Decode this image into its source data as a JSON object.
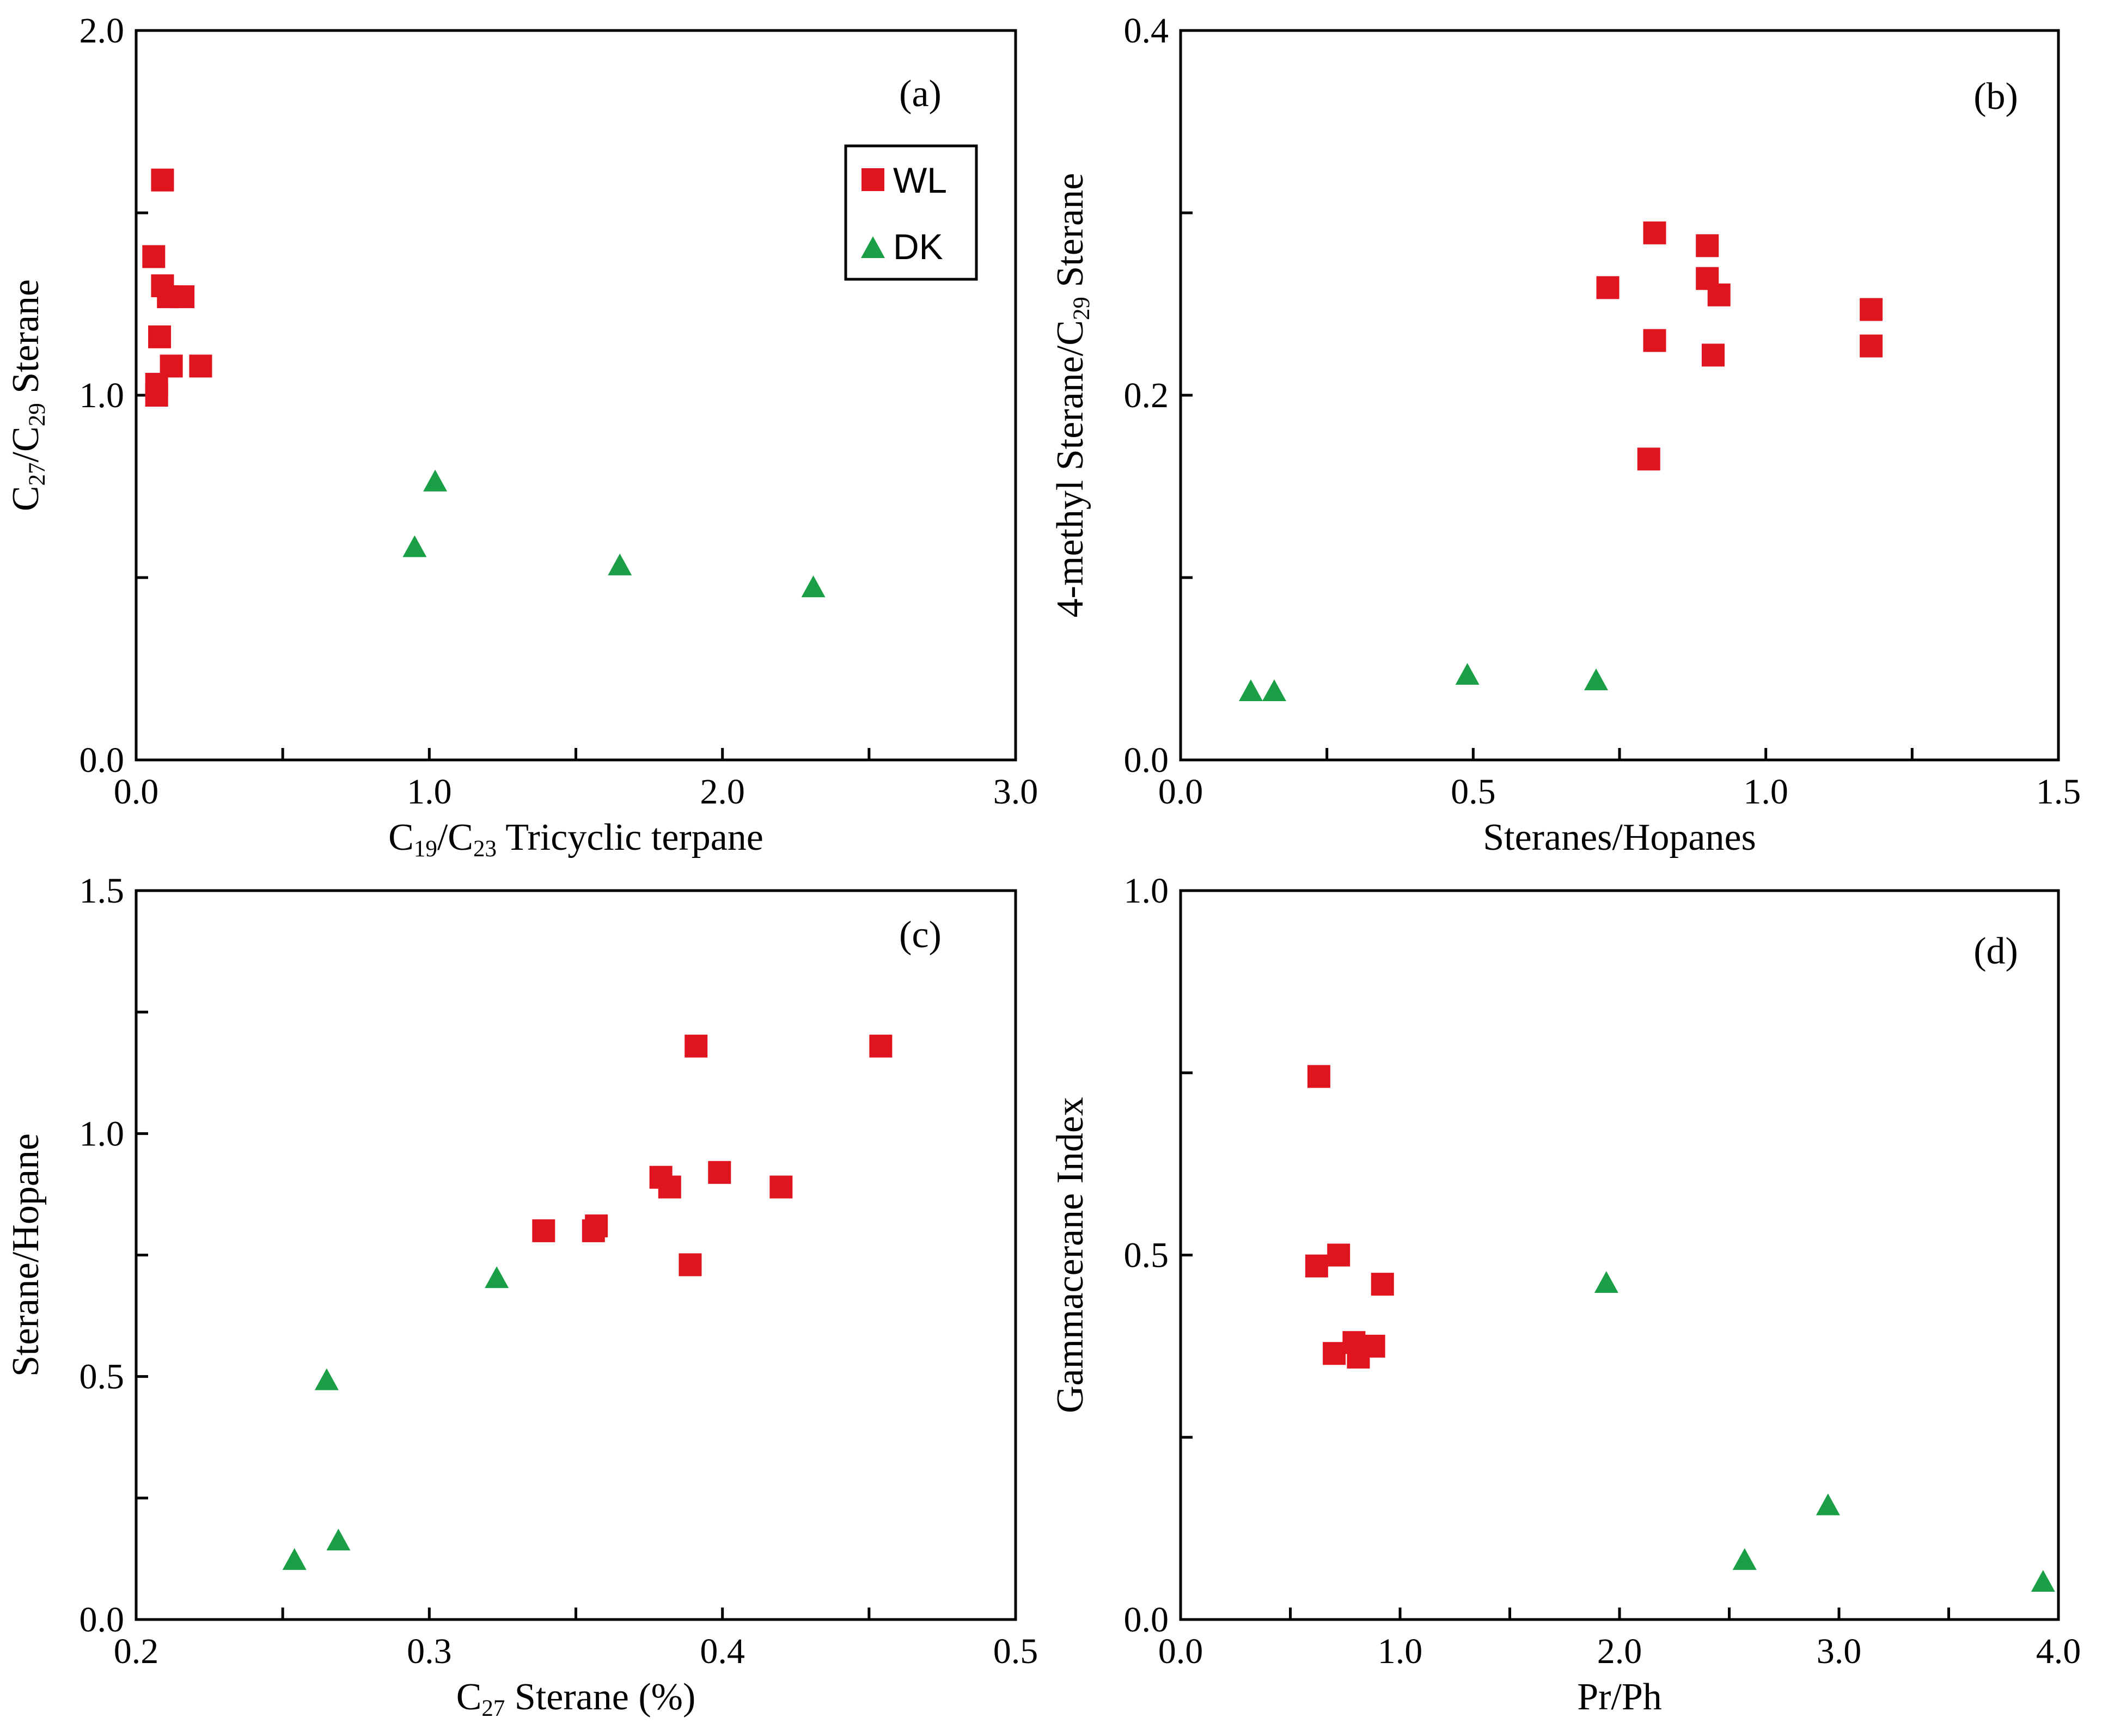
{
  "colors": {
    "WL": "#e0141e",
    "DK": "#1a9e46"
  },
  "legend": [
    {
      "name": "WL",
      "marker": "square"
    },
    {
      "name": "DK",
      "marker": "triangle"
    }
  ],
  "chart_data": [
    {
      "type": "scatter",
      "panel": "(a)",
      "xlabel": {
        "parts": [
          {
            "t": "C"
          },
          {
            "t": "19",
            "sub": true
          },
          {
            "t": "/C"
          },
          {
            "t": "23",
            "sub": true
          },
          {
            "t": " Tricyclic terpane"
          }
        ]
      },
      "ylabel": {
        "parts": [
          {
            "t": "C"
          },
          {
            "t": "27",
            "sub": true
          },
          {
            "t": "/C"
          },
          {
            "t": "29",
            "sub": true
          },
          {
            "t": " Sterane"
          }
        ]
      },
      "xlim": [
        0,
        3
      ],
      "ylim": [
        0,
        2
      ],
      "xticks": [
        0,
        0.5,
        1,
        1.5,
        2,
        2.5,
        3
      ],
      "xticklabels": [
        "0.0",
        "",
        "1.0",
        "",
        "2.0",
        "",
        "3.0"
      ],
      "yticks": [
        0,
        0.5,
        1,
        1.5,
        2
      ],
      "yticklabels": [
        "0.0",
        "",
        "1.0",
        "",
        "2.0"
      ],
      "legend_position": "top-right",
      "series": [
        {
          "name": "WL",
          "marker": "square",
          "points": [
            [
              0.09,
              1.59
            ],
            [
              0.06,
              1.38
            ],
            [
              0.09,
              1.3
            ],
            [
              0.11,
              1.27
            ],
            [
              0.16,
              1.27
            ],
            [
              0.08,
              1.16
            ],
            [
              0.12,
              1.08
            ],
            [
              0.22,
              1.08
            ],
            [
              0.07,
              1.03
            ],
            [
              0.07,
              1.0
            ]
          ]
        },
        {
          "name": "DK",
          "marker": "triangle",
          "points": [
            [
              1.02,
              0.76
            ],
            [
              0.95,
              0.58
            ],
            [
              1.65,
              0.53
            ],
            [
              2.31,
              0.47
            ]
          ]
        }
      ]
    },
    {
      "type": "scatter",
      "panel": "(b)",
      "xlabel": {
        "parts": [
          {
            "t": "Steranes/Hopanes"
          }
        ]
      },
      "ylabel": {
        "parts": [
          {
            "t": "4-methyl Sterane/C"
          },
          {
            "t": "29",
            "sub": true
          },
          {
            "t": " Sterane"
          }
        ]
      },
      "xlim": [
        0,
        1.5
      ],
      "ylim": [
        0,
        0.4
      ],
      "xticks": [
        0,
        0.25,
        0.5,
        0.75,
        1,
        1.25,
        1.5
      ],
      "xticklabels": [
        "0.0",
        "",
        "0.5",
        "",
        "1.0",
        "",
        "1.5"
      ],
      "yticks": [
        0,
        0.1,
        0.2,
        0.3,
        0.4
      ],
      "yticklabels": [
        "0.0",
        "",
        "0.2",
        "",
        "0.4"
      ],
      "series": [
        {
          "name": "WL",
          "marker": "square",
          "points": [
            [
              0.81,
              0.289
            ],
            [
              0.9,
              0.282
            ],
            [
              0.73,
              0.259
            ],
            [
              0.9,
              0.264
            ],
            [
              0.92,
              0.255
            ],
            [
              1.18,
              0.247
            ],
            [
              0.81,
              0.23
            ],
            [
              1.18,
              0.227
            ],
            [
              0.91,
              0.222
            ],
            [
              0.8,
              0.165
            ]
          ]
        },
        {
          "name": "DK",
          "marker": "triangle",
          "points": [
            [
              0.12,
              0.037
            ],
            [
              0.16,
              0.037
            ],
            [
              0.49,
              0.046
            ],
            [
              0.71,
              0.043
            ]
          ]
        }
      ]
    },
    {
      "type": "scatter",
      "panel": "(c)",
      "xlabel": {
        "parts": [
          {
            "t": "C"
          },
          {
            "t": "27",
            "sub": true
          },
          {
            "t": " Sterane (%)"
          }
        ]
      },
      "ylabel": {
        "parts": [
          {
            "t": "Sterane/Hopane"
          }
        ]
      },
      "xlim": [
        0.2,
        0.5
      ],
      "ylim": [
        0,
        1.5
      ],
      "xticks": [
        0.2,
        0.25,
        0.3,
        0.35,
        0.4,
        0.45,
        0.5
      ],
      "xticklabels": [
        "0.2",
        "",
        "0.3",
        "",
        "0.4",
        "",
        "0.5"
      ],
      "yticks": [
        0,
        0.25,
        0.5,
        0.75,
        1,
        1.25,
        1.5
      ],
      "yticklabels": [
        "0.0",
        "",
        "0.5",
        "",
        "1.0",
        "",
        "1.5"
      ],
      "series": [
        {
          "name": "WL",
          "marker": "square",
          "points": [
            [
              0.391,
              1.18
            ],
            [
              0.454,
              1.18
            ],
            [
              0.379,
              0.91
            ],
            [
              0.382,
              0.89
            ],
            [
              0.399,
              0.92
            ],
            [
              0.42,
              0.89
            ],
            [
              0.339,
              0.8
            ],
            [
              0.356,
              0.8
            ],
            [
              0.357,
              0.81
            ],
            [
              0.389,
              0.73
            ]
          ]
        },
        {
          "name": "DK",
          "marker": "triangle",
          "points": [
            [
              0.323,
              0.7
            ],
            [
              0.265,
              0.49
            ],
            [
              0.269,
              0.16
            ],
            [
              0.254,
              0.12
            ]
          ]
        }
      ]
    },
    {
      "type": "scatter",
      "panel": "(d)",
      "xlabel": {
        "parts": [
          {
            "t": "Pr/Ph"
          }
        ]
      },
      "ylabel": {
        "parts": [
          {
            "t": "Gammacerane Index"
          }
        ]
      },
      "xlim": [
        0,
        4
      ],
      "ylim": [
        0,
        1
      ],
      "xticks": [
        0,
        0.5,
        1,
        1.5,
        2,
        2.5,
        3,
        3.5,
        4
      ],
      "xticklabels": [
        "0.0",
        "",
        "1.0",
        "",
        "2.0",
        "",
        "3.0",
        "",
        "4.0"
      ],
      "yticks": [
        0,
        0.25,
        0.5,
        0.75,
        1
      ],
      "yticklabels": [
        "0.0",
        "",
        "0.5",
        "",
        "1.0"
      ],
      "series": [
        {
          "name": "WL",
          "marker": "square",
          "points": [
            [
              0.63,
              0.745
            ],
            [
              0.72,
              0.5
            ],
            [
              0.62,
              0.485
            ],
            [
              0.92,
              0.46
            ],
            [
              0.79,
              0.38
            ],
            [
              0.88,
              0.375
            ],
            [
              0.7,
              0.365
            ],
            [
              0.81,
              0.36
            ]
          ]
        },
        {
          "name": "DK",
          "marker": "triangle",
          "points": [
            [
              1.94,
              0.46
            ],
            [
              2.95,
              0.155
            ],
            [
              2.57,
              0.08
            ],
            [
              3.93,
              0.05
            ]
          ]
        }
      ]
    }
  ]
}
